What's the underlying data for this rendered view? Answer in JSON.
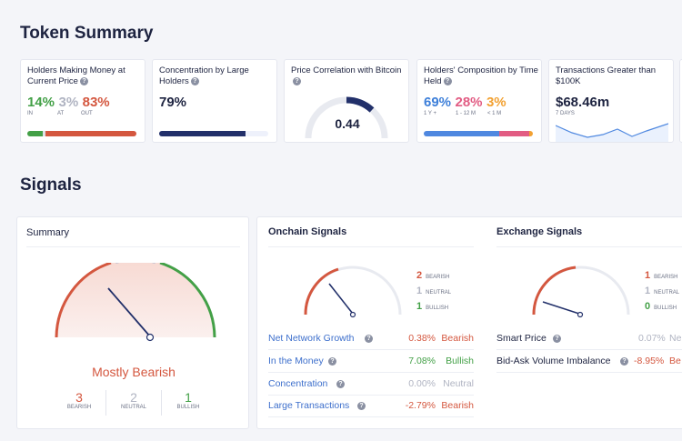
{
  "token_summary": {
    "title": "Token Summary",
    "cards": {
      "holders_money": {
        "title": "Holders Making Money at Current Price",
        "in_val": "14%",
        "in_lbl": "IN",
        "at_val": "3%",
        "at_lbl": "AT",
        "out_val": "83%",
        "out_lbl": "OUT",
        "bar": [
          14,
          3,
          83
        ]
      },
      "concentration": {
        "title": "Concentration by Large Holders",
        "value": "79%",
        "bar": 79
      },
      "price_corr": {
        "title": "Price Correlation with Bitcoin",
        "value": "0.44"
      },
      "composition": {
        "title": "Holders' Composition by Time Held",
        "v1": "69%",
        "l1": "1 Y +",
        "v2": "28%",
        "l2": "1 - 12 M",
        "v3": "3%",
        "l3": "< 1 M",
        "bar": [
          69,
          28,
          3
        ]
      },
      "transactions": {
        "title": "Transactions Greater than $100K",
        "value": "$68.46m",
        "sub": "7 DAYS"
      }
    }
  },
  "signals": {
    "title": "Signals",
    "summary": {
      "title": "Summary",
      "verdict": "Mostly Bearish",
      "bearish": "3",
      "bearish_lbl": "BEARISH",
      "neutral": "2",
      "neutral_lbl": "NEUTRAL",
      "bullish": "1",
      "bullish_lbl": "BULLISH"
    },
    "onchain": {
      "title": "Onchain Signals",
      "bearish": "2",
      "bearish_lbl": "BEARISH",
      "neutral": "1",
      "neutral_lbl": "NEUTRAL",
      "bullish": "1",
      "bullish_lbl": "BULLISH",
      "rows": [
        {
          "label": "Net Network Growth",
          "pct": "0.38%",
          "signal": "Bearish"
        },
        {
          "label": "In the Money",
          "pct": "7.08%",
          "signal": "Bullish"
        },
        {
          "label": "Concentration",
          "pct": "0.00%",
          "signal": "Neutral"
        },
        {
          "label": "Large Transactions",
          "pct": "-2.79%",
          "signal": "Bearish"
        }
      ]
    },
    "exchange": {
      "title": "Exchange Signals",
      "bearish": "1",
      "bearish_lbl": "BEARISH",
      "neutral": "1",
      "neutral_lbl": "NEUTRAL",
      "bullish": "0",
      "bullish_lbl": "BULLISH",
      "rows": [
        {
          "label": "Smart Price",
          "pct": "0.07%",
          "signal": "Ne"
        },
        {
          "label": "Bid-Ask Volume Imbalance",
          "pct": "-8.95%",
          "signal": "Be"
        }
      ]
    }
  },
  "colors": {
    "bearish": "#d4573f",
    "neutral": "#b0b4c2",
    "bullish": "#43a047",
    "navy": "#1d2340",
    "blue": "#3d7fd9",
    "pink": "#e25c83",
    "orange": "#f2a132"
  }
}
